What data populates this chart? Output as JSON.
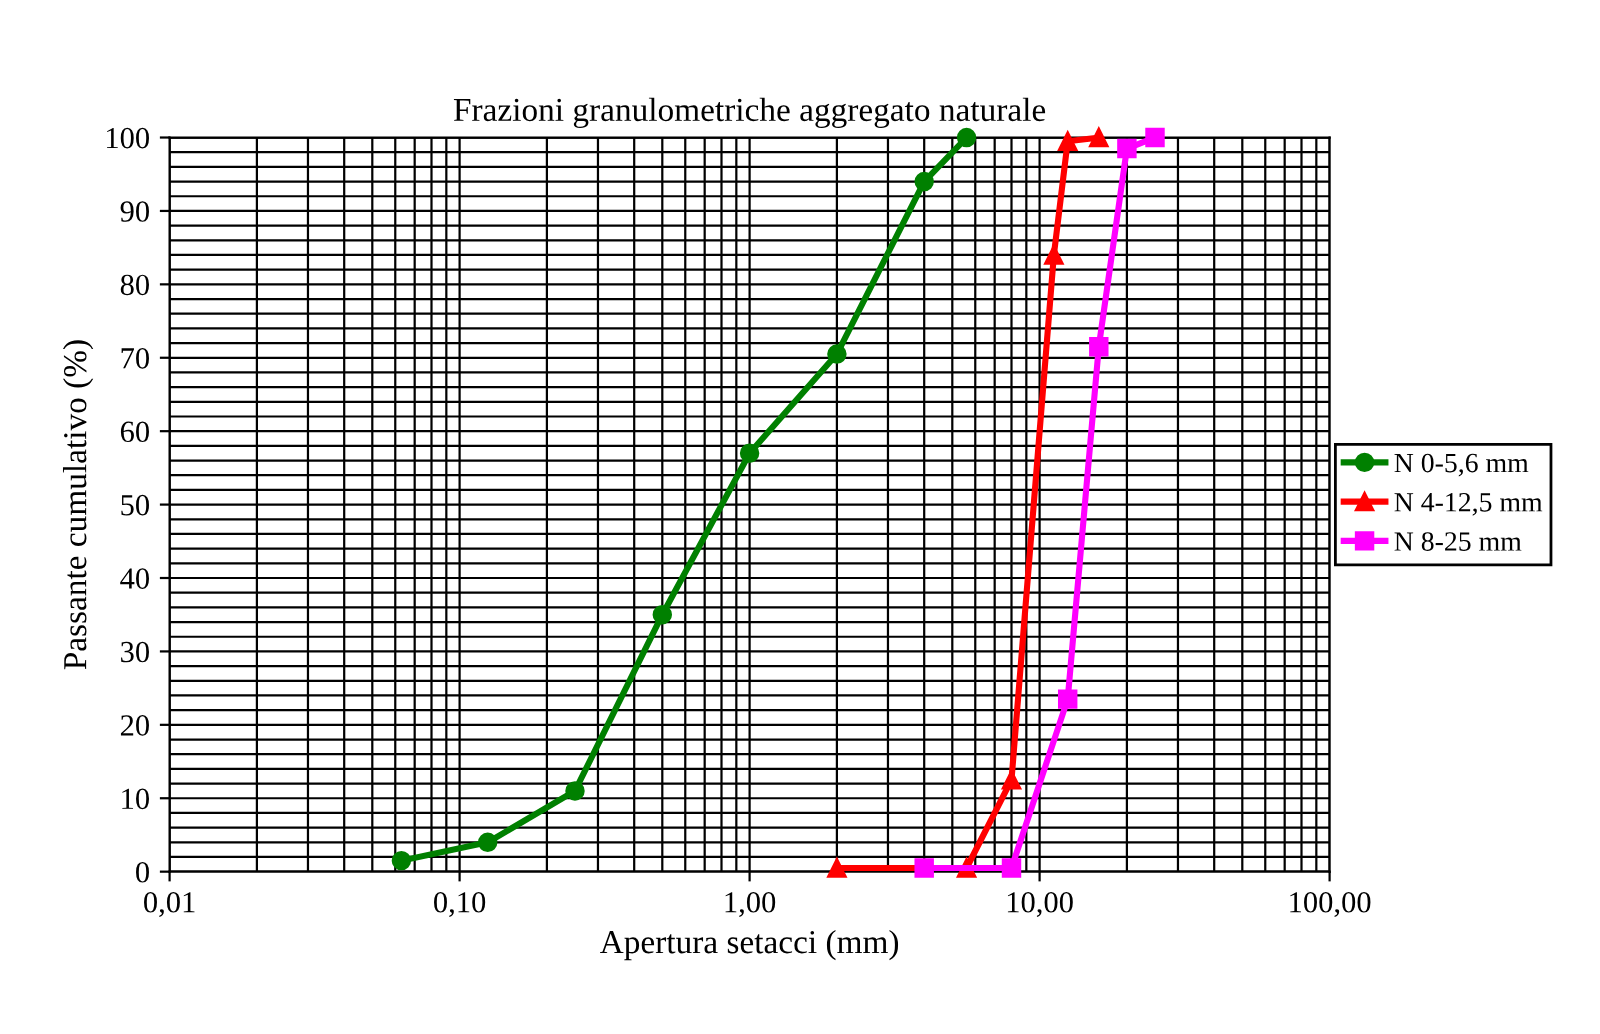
{
  "chart_data": {
    "type": "line",
    "title": "Frazioni granulometriche aggregato naturale",
    "xlabel": "Apertura setacci (mm)",
    "ylabel": "Passante cumulativo (%)",
    "log": "x",
    "xlim": [
      0.01,
      100
    ],
    "xticks": [
      {
        "value": 0.01,
        "label": "0,01"
      },
      {
        "value": 0.1,
        "label": "0,10"
      },
      {
        "value": 1,
        "label": "1,00"
      },
      {
        "value": 10,
        "label": "10,00"
      },
      {
        "value": 100,
        "label": "100,00"
      }
    ],
    "ylim": [
      0,
      100
    ],
    "yticks": [
      0,
      10,
      20,
      30,
      40,
      50,
      60,
      70,
      80,
      90,
      100
    ],
    "grid": true,
    "legend": "right",
    "line_style": "solid",
    "series": [
      {
        "name": "N 0-5,6 mm",
        "color": "#008000",
        "marker": "circle",
        "x": [
          0.063,
          0.125,
          0.25,
          0.5,
          1,
          2,
          4,
          5.6
        ],
        "values": [
          1.5,
          4,
          11,
          35,
          57,
          70.5,
          94,
          100
        ]
      },
      {
        "name": "N 4-12,5 mm",
        "color": "#ff0000",
        "marker": "triangle",
        "x": [
          2,
          5.6,
          8,
          11.2,
          12.5,
          16
        ],
        "values": [
          0.5,
          0.5,
          12.5,
          84,
          99.5,
          100
        ]
      },
      {
        "name": "N 8-25 mm",
        "color": "#ff00ff",
        "marker": "square",
        "x": [
          4,
          8,
          12.5,
          16,
          20,
          25
        ],
        "values": [
          0.5,
          0.5,
          23.5,
          71.5,
          98.5,
          100
        ]
      }
    ]
  }
}
